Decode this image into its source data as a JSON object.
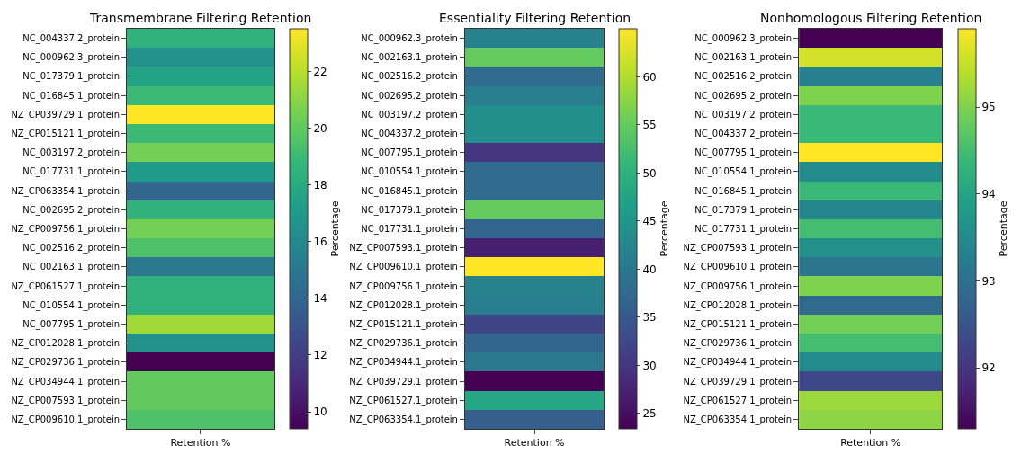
{
  "chart_data": [
    {
      "type": "heatmap",
      "title": "Transmembrane Filtering Retention",
      "categories": [
        "Retention %"
      ],
      "clabel": "Percentage",
      "clim": [
        9.4,
        23.5
      ],
      "cticks": [
        10,
        12,
        14,
        16,
        18,
        20,
        22
      ],
      "y_categories": [
        "NC_004337.2_protein",
        "NC_000962.3_protein",
        "NC_017379.1_protein",
        "NC_016845.1_protein",
        "NZ_CP039729.1_protein",
        "NZ_CP015121.1_protein",
        "NC_003197.2_protein",
        "NC_017731.1_protein",
        "NZ_CP063354.1_protein",
        "NC_002695.2_protein",
        "NZ_CP009756.1_protein",
        "NC_002516.2_protein",
        "NC_002163.1_protein",
        "NZ_CP061527.1_protein",
        "NC_010554.1_protein",
        "NC_007795.1_protein",
        "NZ_CP012028.1_protein",
        "NZ_CP029736.1_protein",
        "NZ_CP034944.1_protein",
        "NZ_CP007593.1_protein",
        "NZ_CP009610.1_protein"
      ],
      "cells": [
        [
          18.5
        ],
        [
          16.5
        ],
        [
          17.5
        ],
        [
          19
        ],
        [
          23.5
        ],
        [
          19
        ],
        [
          20.5
        ],
        [
          17
        ],
        [
          14
        ],
        [
          18.5
        ],
        [
          20.5
        ],
        [
          19.5
        ],
        [
          15
        ],
        [
          18.5
        ],
        [
          18.5
        ],
        [
          21.5
        ],
        [
          16.5
        ],
        [
          9.4
        ],
        [
          20
        ],
        [
          20
        ],
        [
          19.5
        ]
      ]
    },
    {
      "type": "heatmap",
      "title": "Essentiality Filtering Retention",
      "categories": [
        "Retention %"
      ],
      "clabel": "Percentage",
      "clim": [
        23.4,
        65
      ],
      "cticks": [
        25,
        30,
        35,
        40,
        45,
        50,
        55,
        60
      ],
      "y_categories": [
        "NC_000962.3_protein",
        "NC_002163.1_protein",
        "NC_002516.2_protein",
        "NC_002695.2_protein",
        "NC_003197.2_protein",
        "NC_004337.2_protein",
        "NC_007795.1_protein",
        "NC_010554.1_protein",
        "NC_016845.1_protein",
        "NC_017379.1_protein",
        "NC_017731.1_protein",
        "NZ_CP007593.1_protein",
        "NZ_CP009610.1_protein",
        "NZ_CP009756.1_protein",
        "NZ_CP012028.1_protein",
        "NZ_CP015121.1_protein",
        "NZ_CP029736.1_protein",
        "NZ_CP034944.1_protein",
        "NZ_CP039729.1_protein",
        "NZ_CP061527.1_protein",
        "NZ_CP063354.1_protein"
      ],
      "cells": [
        [
          42
        ],
        [
          55
        ],
        [
          38
        ],
        [
          41
        ],
        [
          44
        ],
        [
          44
        ],
        [
          30
        ],
        [
          38
        ],
        [
          38
        ],
        [
          55
        ],
        [
          37
        ],
        [
          27
        ],
        [
          65
        ],
        [
          42
        ],
        [
          41
        ],
        [
          32
        ],
        [
          37
        ],
        [
          40
        ],
        [
          23.4
        ],
        [
          48
        ],
        [
          36
        ]
      ]
    },
    {
      "type": "heatmap",
      "title": "Nonhomologous Filtering Retention",
      "categories": [
        "Retention %"
      ],
      "clabel": "Percentage",
      "clim": [
        91.3,
        95.9
      ],
      "cticks": [
        92,
        93,
        94,
        95
      ],
      "y_categories": [
        "NC_000962.3_protein",
        "NC_002163.1_protein",
        "NC_002516.2_protein",
        "NC_002695.2_protein",
        "NC_003197.2_protein",
        "NC_004337.2_protein",
        "NC_007795.1_protein",
        "NC_010554.1_protein",
        "NC_016845.1_protein",
        "NC_017379.1_protein",
        "NC_017731.1_protein",
        "NZ_CP007593.1_protein",
        "NZ_CP009610.1_protein",
        "NZ_CP009756.1_protein",
        "NZ_CP012028.1_protein",
        "NZ_CP015121.1_protein",
        "NZ_CP029736.1_protein",
        "NZ_CP034944.1_protein",
        "NZ_CP039729.1_protein",
        "NZ_CP061527.1_protein",
        "NZ_CP063354.1_protein"
      ],
      "cells": [
        [
          91.3
        ],
        [
          95.6
        ],
        [
          93.3
        ],
        [
          95
        ],
        [
          94.4
        ],
        [
          94.4
        ],
        [
          95.9
        ],
        [
          93.5
        ],
        [
          94.4
        ],
        [
          93.4
        ],
        [
          94.5
        ],
        [
          93.6
        ],
        [
          93.1
        ],
        [
          95
        ],
        [
          92.9
        ],
        [
          94.9
        ],
        [
          94.5
        ],
        [
          93.5
        ],
        [
          92.3
        ],
        [
          95.2
        ],
        [
          95.1
        ]
      ]
    }
  ]
}
